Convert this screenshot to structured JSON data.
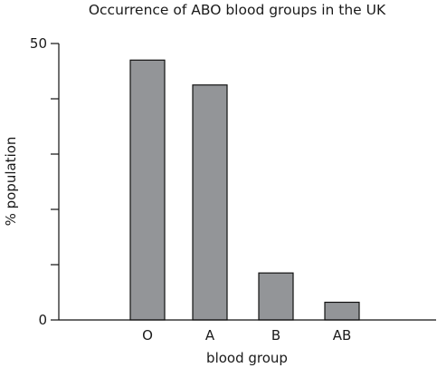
{
  "chart_data": {
    "type": "bar",
    "title": "Occurrence of ABO blood groups in the UK",
    "xlabel": "blood group",
    "ylabel": "% population",
    "categories": [
      "O",
      "A",
      "B",
      "AB"
    ],
    "values": [
      47,
      42.5,
      8.5,
      3.2
    ],
    "ylim": [
      0,
      50
    ],
    "yticks": [
      0,
      10,
      20,
      30,
      40,
      50
    ],
    "ytick_labels": [
      "0",
      "",
      "",
      "",
      "",
      "50"
    ],
    "grid": false,
    "legend": "none",
    "bar_color": "#939598"
  }
}
